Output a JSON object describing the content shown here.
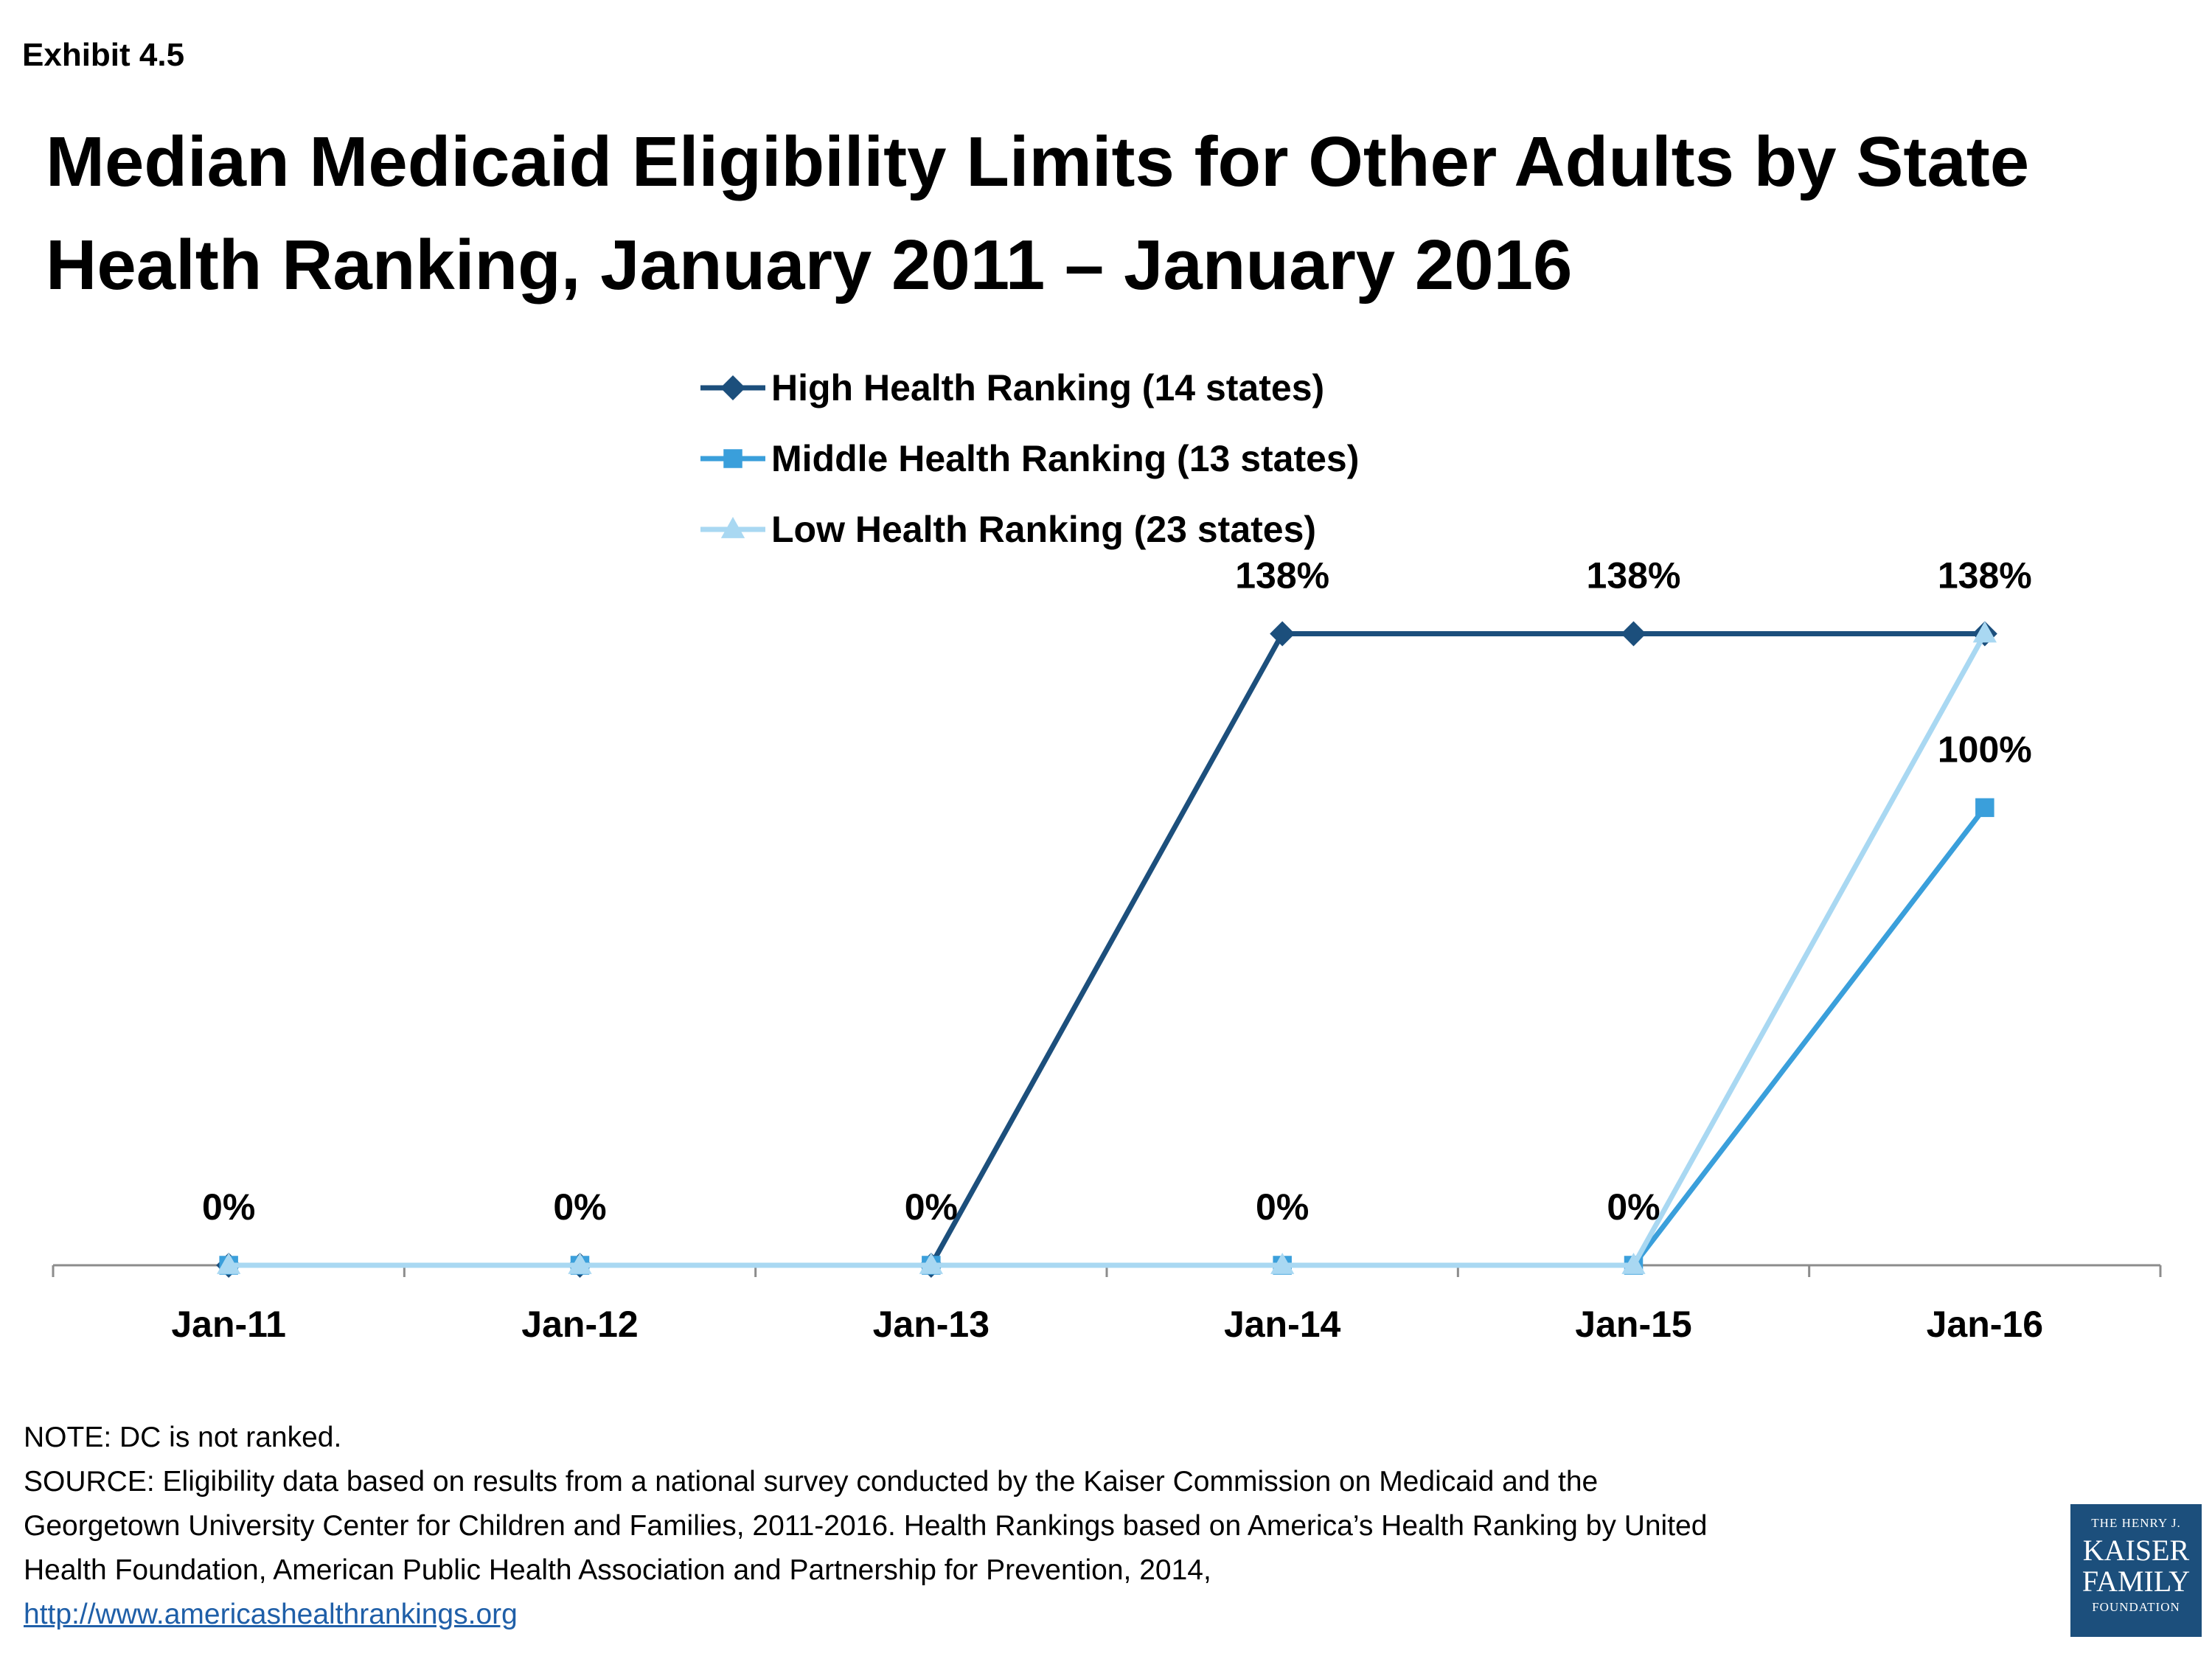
{
  "exhibit_label": "Exhibit 4.5",
  "chart_data": {
    "type": "line",
    "title": "Median Medicaid Eligibility Limits for Other Adults by State Health Ranking, January 2011 – January 2016",
    "categories": [
      "Jan-11",
      "Jan-12",
      "Jan-13",
      "Jan-14",
      "Jan-15",
      "Jan-16"
    ],
    "ylim": [
      0,
      150
    ],
    "grid": false,
    "legend_position": "top-center",
    "series": [
      {
        "name": "High Health Ranking (14 states)",
        "values": [
          0,
          0,
          0,
          138,
          138,
          138
        ],
        "color": "#1c4f7c",
        "marker": "diamond"
      },
      {
        "name": "Middle Health Ranking (13 states)",
        "values": [
          0,
          0,
          0,
          0,
          0,
          100
        ],
        "color": "#3a9fdb",
        "marker": "square"
      },
      {
        "name": "Low Health Ranking (23 states)",
        "values": [
          0,
          0,
          0,
          0,
          0,
          138
        ],
        "color": "#a9d8f2",
        "marker": "triangle"
      }
    ],
    "data_labels": [
      {
        "category_index": 0,
        "value": 0,
        "text": "0%"
      },
      {
        "category_index": 1,
        "value": 0,
        "text": "0%"
      },
      {
        "category_index": 2,
        "value": 0,
        "text": "0%"
      },
      {
        "category_index": 3,
        "value": 0,
        "text": "0%"
      },
      {
        "category_index": 4,
        "value": 0,
        "text": "0%"
      },
      {
        "category_index": 3,
        "value": 138,
        "text": "138%"
      },
      {
        "category_index": 4,
        "value": 138,
        "text": "138%"
      },
      {
        "category_index": 5,
        "value": 138,
        "text": "138%"
      },
      {
        "category_index": 5,
        "value": 100,
        "text": "100%"
      }
    ]
  },
  "notes": {
    "note": "NOTE: DC is not ranked.",
    "source_lines": [
      "SOURCE: Eligibility data based on results from a national survey conducted by the Kaiser Commission on Medicaid and the",
      "Georgetown University Center for Children and Families, 2011-2016. Health Rankings based on America’s Health Ranking by United",
      "Health Foundation, American Public Health Association and Partnership for Prevention, 2014,"
    ],
    "link": "http://www.americashealthrankings.org"
  },
  "logo": {
    "line1": "THE HENRY J.",
    "line2": "KAISER",
    "line3": "FAMILY",
    "line4": "FOUNDATION"
  }
}
